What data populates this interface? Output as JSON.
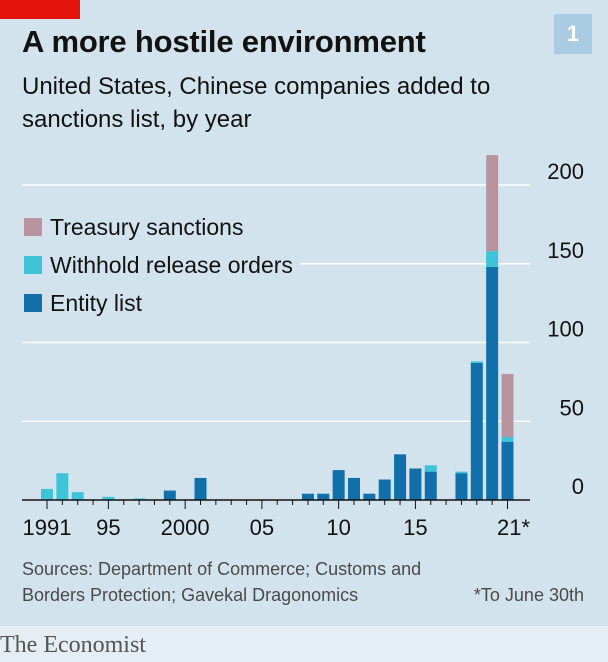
{
  "header": {
    "title": "A more hostile environment",
    "subtitle": "United States, Chinese companies added to sanctions list, by year",
    "badge": "1"
  },
  "footer": {
    "source": "Sources: Department of Commerce; Customs and Borders Protection; Gavekal Dragonomics",
    "note": "*To June 30th",
    "brand": "The Economist"
  },
  "colors": {
    "background": "#d3e3ee",
    "treasury": "#b8949e",
    "withhold": "#3ec3d8",
    "entity": "#1170aa",
    "gridline": "#ffffff",
    "accent": "#e3120b"
  },
  "chart_data": {
    "type": "bar",
    "stacked": true,
    "title": "A more hostile environment",
    "subtitle": "United States, Chinese companies added to sanctions list, by year",
    "x": [
      1991,
      1992,
      1993,
      1994,
      1995,
      1996,
      1997,
      1998,
      1999,
      2000,
      2001,
      2002,
      2003,
      2004,
      2005,
      2006,
      2007,
      2008,
      2009,
      2010,
      2011,
      2012,
      2013,
      2014,
      2015,
      2016,
      2017,
      2018,
      2019,
      2020,
      2021
    ],
    "x_tick_values": [
      1991,
      1995,
      2000,
      2005,
      2010,
      2015,
      2021
    ],
    "x_tick_labels": [
      "1991",
      "95",
      "2000",
      "05",
      "10",
      "15",
      "21*"
    ],
    "y_ticks": [
      0,
      50,
      100,
      150,
      200
    ],
    "y_tick_labels": [
      "0",
      "50",
      "100",
      "150",
      "200"
    ],
    "ylim": [
      0,
      220
    ],
    "grid": true,
    "legend_position": "top-left",
    "series": [
      {
        "name": "Entity list",
        "color": "#1170aa",
        "values": [
          0,
          0,
          0,
          0,
          0,
          0,
          0,
          0,
          6,
          0,
          14,
          0,
          0,
          0,
          0,
          0,
          0,
          4,
          4,
          19,
          14,
          4,
          13,
          29,
          20,
          18,
          0,
          17,
          87,
          148,
          37
        ]
      },
      {
        "name": "Withhold release orders",
        "color": "#3ec3d8",
        "values": [
          7,
          17,
          5,
          0,
          2,
          0,
          1,
          0,
          0,
          0,
          0,
          0,
          0,
          0,
          0,
          0,
          0,
          0,
          0,
          0,
          0,
          0,
          0,
          0,
          0,
          4,
          0,
          1,
          1,
          10,
          3
        ]
      },
      {
        "name": "Treasury sanctions",
        "color": "#b8949e",
        "values": [
          0,
          0,
          0,
          0,
          0,
          0,
          0,
          0,
          0,
          0,
          0,
          0,
          0,
          0,
          0,
          0,
          0,
          0,
          0,
          0,
          0,
          0,
          0,
          0,
          0,
          0,
          0,
          0,
          0,
          61,
          40
        ]
      }
    ],
    "legend": [
      "Treasury sanctions",
      "Withhold release orders",
      "Entity list"
    ]
  }
}
